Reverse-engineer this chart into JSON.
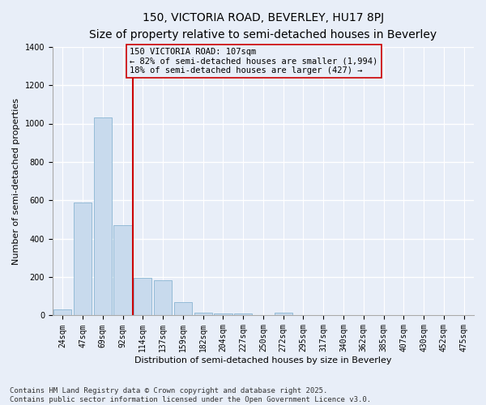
{
  "title_line1": "150, VICTORIA ROAD, BEVERLEY, HU17 8PJ",
  "title_line2": "Size of property relative to semi-detached houses in Beverley",
  "xlabel": "Distribution of semi-detached houses by size in Beverley",
  "ylabel": "Number of semi-detached properties",
  "categories": [
    "24sqm",
    "47sqm",
    "69sqm",
    "92sqm",
    "114sqm",
    "137sqm",
    "159sqm",
    "182sqm",
    "204sqm",
    "227sqm",
    "250sqm",
    "272sqm",
    "295sqm",
    "317sqm",
    "340sqm",
    "362sqm",
    "385sqm",
    "407sqm",
    "430sqm",
    "452sqm",
    "475sqm"
  ],
  "values": [
    30,
    590,
    1030,
    470,
    195,
    185,
    70,
    15,
    10,
    10,
    0,
    15,
    0,
    0,
    0,
    0,
    0,
    0,
    0,
    0,
    0
  ],
  "bar_color": "#c8daed",
  "bar_edge_color": "#7aaccc",
  "vline_x": 3.5,
  "vline_color": "#cc0000",
  "annotation_text": "150 VICTORIA ROAD: 107sqm\n← 82% of semi-detached houses are smaller (1,994)\n18% of semi-detached houses are larger (427) →",
  "ylim": [
    0,
    1400
  ],
  "yticks": [
    0,
    200,
    400,
    600,
    800,
    1000,
    1200,
    1400
  ],
  "background_color": "#e8eef8",
  "grid_color": "#ffffff",
  "footnote": "Contains HM Land Registry data © Crown copyright and database right 2025.\nContains public sector information licensed under the Open Government Licence v3.0.",
  "title_fontsize": 10,
  "subtitle_fontsize": 9,
  "axis_label_fontsize": 8,
  "tick_fontsize": 7,
  "annotation_fontsize": 7.5,
  "footnote_fontsize": 6.5
}
